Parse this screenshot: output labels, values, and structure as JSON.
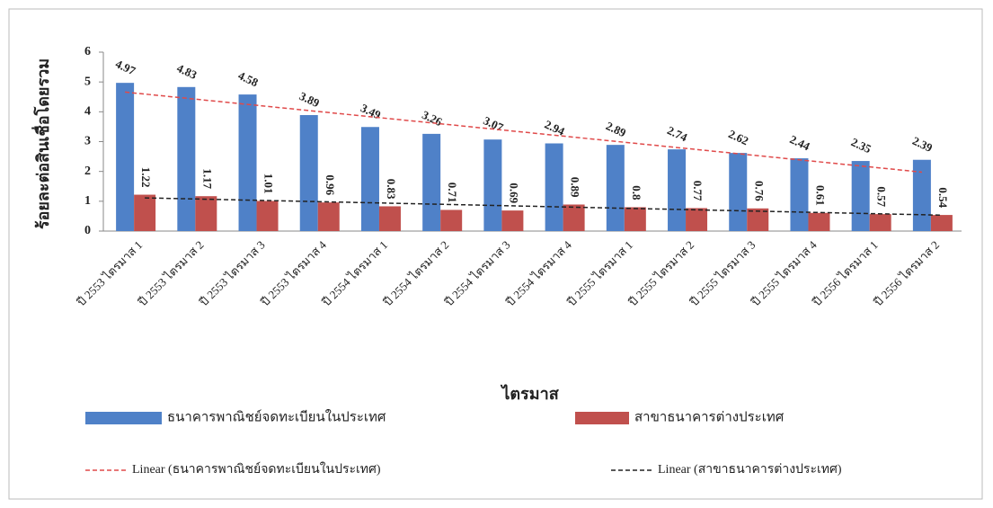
{
  "chart_data": {
    "type": "bar",
    "y_label": "ร้อยละต่อสินเชื่อโดยรวม",
    "x_label": "ไตรมาส",
    "categories": [
      "ปี 2553 ไตรมาส 1",
      "ปี 2553 ไตรมาส 2",
      "ปี 2553 ไตรมาส 3",
      "ปี 2553 ไตรมาส 4",
      "ปี 2554 ไตรมาส 1",
      "ปี 2554 ไตรมาส 2",
      "ปี 2554 ไตรมาส 3",
      "ปี 2554 ไตรมาส 4",
      "ปี 2555 ไตรมาส 1",
      "ปี 2555 ไตรมาส 2",
      "ปี 2555 ไตรมาส 3",
      "ปี 2555 ไตรมาส 4",
      "ปี 2556 ไตรมาส 1",
      "ปี 2556 ไตรมาส 2"
    ],
    "series": [
      {
        "name": "ธนาคารพาณิชย์จดทะเบียนในประเทศ",
        "color": "#4f81c8",
        "values": [
          4.97,
          4.83,
          4.58,
          3.89,
          3.49,
          3.26,
          3.07,
          2.94,
          2.89,
          2.74,
          2.62,
          2.44,
          2.35,
          2.39
        ],
        "trendline": {
          "name": "Linear (ธนาคารพาณิชย์จดทะเบียนในประเทศ)",
          "color": "#e04a4a"
        }
      },
      {
        "name": "สาขาธนาคารต่างประเทศ",
        "color": "#c0504d",
        "values": [
          1.22,
          1.17,
          1.01,
          0.96,
          0.83,
          0.71,
          0.69,
          0.89,
          0.8,
          0.77,
          0.76,
          0.61,
          0.57,
          0.54
        ],
        "trendline": {
          "name": "Linear (สาขาธนาคารต่างประเทศ)",
          "color": "#222222"
        }
      }
    ],
    "ylim": [
      0,
      6
    ],
    "yticks": [
      0,
      1,
      2,
      3,
      4,
      5,
      6
    ],
    "grid": false,
    "legend": "bottom"
  }
}
